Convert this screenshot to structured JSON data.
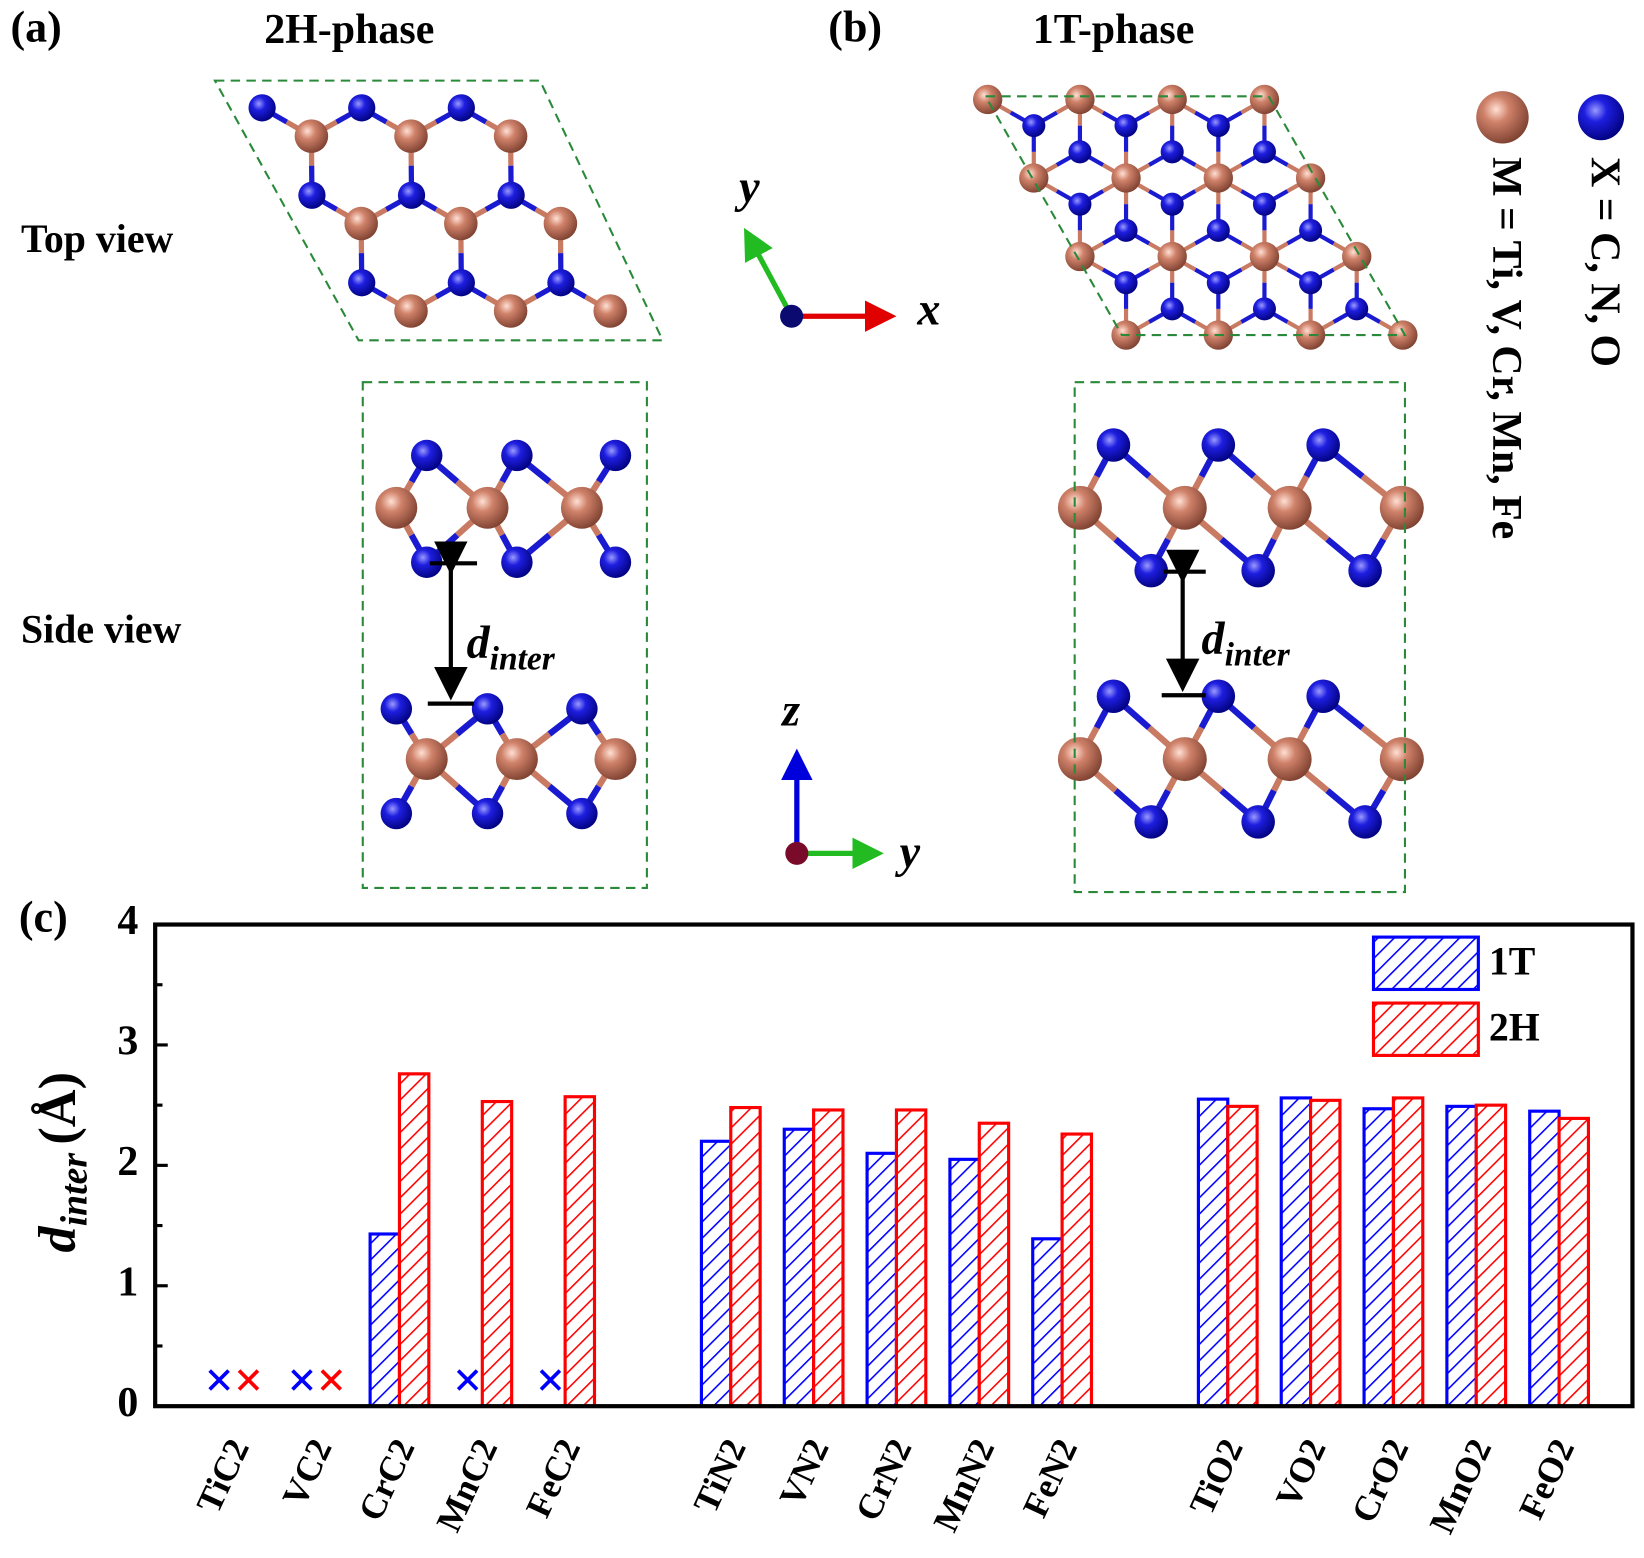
{
  "figure": {
    "panel_a": "(a)",
    "title_2h": "2H-phase",
    "panel_b": "(b)",
    "title_1t": "1T-phase",
    "top_view": "Top view",
    "side_view": "Side view",
    "panel_c": "(c)",
    "d_symbol": "d",
    "d_subscript": "inter",
    "axis_x": "x",
    "axis_y": "y",
    "axis_z": "z",
    "legend_x": "X = C, N, O",
    "legend_m": "M = Ti, V, Cr, Mn, Fe"
  },
  "chart_data": {
    "type": "bar",
    "y_label": {
      "symbol": "d",
      "subscript": "inter",
      "unit": "(Å)"
    },
    "categories": [
      "TiC2",
      "VC2",
      "CrC2",
      "MnC2",
      "FeC2",
      "TiN2",
      "VN2",
      "CrN2",
      "MnN2",
      "FeN2",
      "TiO2",
      "VO2",
      "CrO2",
      "MnO2",
      "FeO2"
    ],
    "series": [
      {
        "name": "1T",
        "color": "#0000ff",
        "values": [
          null,
          null,
          1.43,
          null,
          null,
          2.2,
          2.3,
          2.1,
          2.05,
          1.39,
          2.55,
          2.56,
          2.47,
          2.49,
          2.45
        ]
      },
      {
        "name": "2H",
        "color": "#ff0000",
        "values": [
          null,
          null,
          2.76,
          2.53,
          2.57,
          2.48,
          2.46,
          2.46,
          2.35,
          2.26,
          2.49,
          2.54,
          2.56,
          2.5,
          2.39
        ]
      }
    ],
    "ylim": [
      0,
      4
    ],
    "yticks": [
      0,
      1,
      2,
      3,
      4
    ],
    "legend": "top-right"
  }
}
